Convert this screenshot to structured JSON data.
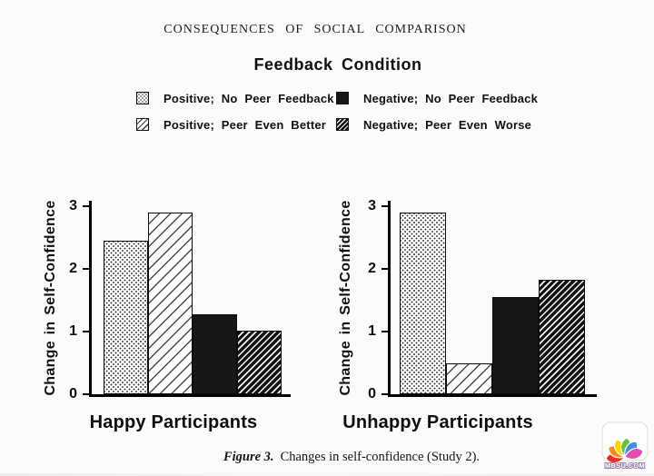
{
  "page": {
    "running_head": "CONSEQUENCES OF SOCIAL COMPARISON",
    "legend_title": "Feedback Condition",
    "caption_label": "Figure 3.",
    "caption_text": "Changes in self-confidence (Study 2)."
  },
  "legend": {
    "items": [
      {
        "label": "Positive; No Peer Feedback",
        "pattern": "dots"
      },
      {
        "label": "Positive; Peer Even Better",
        "pattern": "diag"
      },
      {
        "label": "Negative; No Peer Feedback",
        "pattern": "solid"
      },
      {
        "label": "Negative; Peer Even Worse",
        "pattern": "dense"
      }
    ]
  },
  "chart_data": [
    {
      "type": "bar",
      "title": "Happy Participants",
      "ylabel": "Change in Self-Confidence",
      "ylim": [
        0,
        3
      ],
      "yticks": [
        0,
        1,
        2,
        3
      ],
      "grid": false,
      "legend_position": "top",
      "categories": [
        "Positive; No Peer Feedback",
        "Positive; Peer Even Better",
        "Negative; No Peer Feedback",
        "Negative; Peer Even Worse"
      ],
      "values": [
        2.45,
        2.9,
        1.28,
        1.02
      ],
      "patterns": [
        "dots",
        "diag",
        "solid",
        "dense"
      ],
      "bar_outline_color": "#000000",
      "solid_bar_color": "#171717"
    },
    {
      "type": "bar",
      "title": "Unhappy Participants",
      "ylabel": "Change in Self-Confidence",
      "ylim": [
        0,
        3
      ],
      "yticks": [
        0,
        1,
        2,
        3
      ],
      "grid": false,
      "legend_position": "top",
      "categories": [
        "Positive; No Peer Feedback",
        "Positive; Peer Even Better",
        "Negative; No Peer Feedback",
        "Negative; Peer Even Worse"
      ],
      "values": [
        2.9,
        0.5,
        1.55,
        1.82
      ],
      "patterns": [
        "dots",
        "diag",
        "solid",
        "dense"
      ],
      "bar_outline_color": "#000000",
      "solid_bar_color": "#171717"
    }
  ],
  "watermark": {
    "text": "MBSU.COM",
    "colors": [
      "#e63226",
      "#f68b1f",
      "#ffd200",
      "#6cbe45",
      "#3f8fde",
      "#e24fae"
    ]
  }
}
